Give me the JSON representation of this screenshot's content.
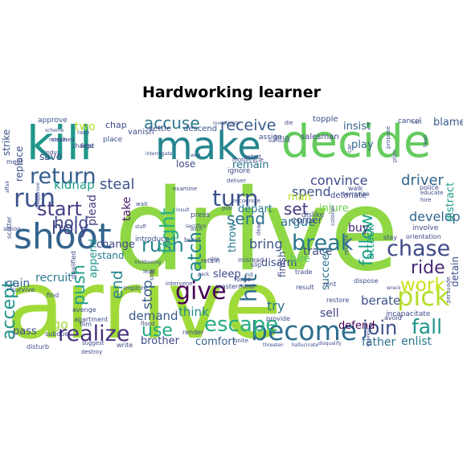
{
  "title": "Hardworking learner",
  "words": [
    {
      "text": "arrive",
      "color": "#a0da39"
    },
    {
      "text": "drive",
      "color": "#8fd744"
    },
    {
      "text": "decide",
      "color": "#65cb5e"
    },
    {
      "text": "make",
      "color": "#25858e"
    },
    {
      "text": "kill",
      "color": "#1f988b"
    },
    {
      "text": "shoot",
      "color": "#33638d"
    },
    {
      "text": "become",
      "color": "#2e6e8e"
    },
    {
      "text": "return",
      "color": "#365d8d"
    },
    {
      "text": "give",
      "color": "#440154"
    },
    {
      "text": "run",
      "color": "#3b528b"
    },
    {
      "text": "chase",
      "color": "#3e4a89"
    },
    {
      "text": "pick",
      "color": "#b5de2b"
    },
    {
      "text": "work",
      "color": "#cae11f"
    },
    {
      "text": "escape",
      "color": "#27ad81"
    },
    {
      "text": "realize",
      "color": "#46327e"
    },
    {
      "text": "join",
      "color": "#3b528b"
    },
    {
      "text": "fall",
      "color": "#1f948c"
    },
    {
      "text": "break",
      "color": "#2a768e"
    },
    {
      "text": "turn",
      "color": "#3b528b"
    },
    {
      "text": "start",
      "color": "#433e85"
    },
    {
      "text": "use",
      "color": "#23a983"
    },
    {
      "text": "rush",
      "color": "#25848e"
    },
    {
      "text": "hit",
      "color": "#2e6e8e"
    },
    {
      "text": "fight",
      "color": "#29af7f"
    },
    {
      "text": "catch",
      "color": "#24868e"
    },
    {
      "text": "holy",
      "color": "#3f4889"
    },
    {
      "text": "ride",
      "color": "#482878"
    },
    {
      "text": "accuse",
      "color": "#2a768e"
    },
    {
      "text": "receive",
      "color": "#38598c"
    },
    {
      "text": "send",
      "color": "#2c728e"
    },
    {
      "text": "set",
      "color": "#443983"
    },
    {
      "text": "follow",
      "color": "#1fa088"
    },
    {
      "text": "push",
      "color": "#1f9e89"
    },
    {
      "text": "end",
      "color": "#25858e"
    },
    {
      "text": "stop",
      "color": "#365d8d"
    },
    {
      "text": "accept",
      "color": "#20928c"
    },
    {
      "text": "driver",
      "color": "#31668e"
    },
    {
      "text": "develop",
      "color": "#31668e"
    },
    {
      "text": "convince",
      "color": "#3e4c8a"
    },
    {
      "text": "steal",
      "color": "#3b528b"
    },
    {
      "text": "hold",
      "color": "#3f4889"
    },
    {
      "text": "spend",
      "color": "#3b528b"
    },
    {
      "text": "argue",
      "color": "#2c728e"
    },
    {
      "text": "bring",
      "color": "#3b528b"
    },
    {
      "text": "buy",
      "color": "#482173"
    },
    {
      "text": "trace",
      "color": "#3e4a89"
    },
    {
      "text": "try",
      "color": "#2a788e"
    },
    {
      "text": "sell",
      "color": "#404688"
    },
    {
      "text": "demand",
      "color": "#38598c"
    },
    {
      "text": "berate",
      "color": "#3b528b"
    },
    {
      "text": "enlist",
      "color": "#2a768e"
    },
    {
      "text": "father",
      "color": "#2c728e"
    },
    {
      "text": "think",
      "color": "#23898e"
    },
    {
      "text": "comfort",
      "color": "#34618d"
    },
    {
      "text": "brother",
      "color": "#3f4889"
    },
    {
      "text": "kidnap",
      "color": "#1f9a8a"
    },
    {
      "text": "depart",
      "color": "#2a768e"
    },
    {
      "text": "take",
      "color": "#481a6c"
    },
    {
      "text": "recruit",
      "color": "#2a788e"
    },
    {
      "text": "gain",
      "color": "#32658e"
    },
    {
      "text": "pass",
      "color": "#3e4c8a"
    },
    {
      "text": "go",
      "color": "#a2da37"
    },
    {
      "text": "remain",
      "color": "#2c728e"
    },
    {
      "text": "lose",
      "color": "#3e4a89"
    },
    {
      "text": "disarm",
      "color": "#3e4c8a"
    },
    {
      "text": "hire",
      "color": "#5ec962"
    },
    {
      "text": "injure",
      "color": "#70cf57"
    },
    {
      "text": "play",
      "color": "#32658e"
    },
    {
      "text": "insist",
      "color": "#34618d"
    },
    {
      "text": "blame",
      "color": "#365d8d"
    },
    {
      "text": "two",
      "color": "#b8de29"
    },
    {
      "text": "save",
      "color": "#3e4c8a"
    },
    {
      "text": "plead",
      "color": "#433e85"
    },
    {
      "text": "change",
      "color": "#3f4889"
    },
    {
      "text": "stand",
      "color": "#2a788e"
    },
    {
      "text": "sleep",
      "color": "#3e4a89"
    },
    {
      "text": "finish",
      "color": "#3e4c8a"
    },
    {
      "text": "succeed",
      "color": "#2c728e"
    },
    {
      "text": "defend",
      "color": "#440154"
    },
    {
      "text": "attack",
      "color": "#1f9e89"
    },
    {
      "text": "distract",
      "color": "#1f9e89"
    },
    {
      "text": "replace",
      "color": "#3b528b"
    },
    {
      "text": "strike",
      "color": "#3b528b"
    },
    {
      "text": "corner",
      "color": "#3e4c8a"
    },
    {
      "text": "append",
      "color": "#1f968b"
    },
    {
      "text": "detain",
      "color": "#3e4c8a"
    },
    {
      "text": "throw",
      "color": "#2a788e"
    },
    {
      "text": "chap",
      "color": "#3e4a89"
    },
    {
      "text": "settle",
      "color": "#3e4a89"
    },
    {
      "text": "descend",
      "color": "#3b528b"
    },
    {
      "text": "man",
      "color": "#bddf26"
    },
    {
      "text": "salesman",
      "color": "#404688"
    },
    {
      "text": "detonate",
      "color": "#3e4a89"
    },
    {
      "text": "topple",
      "color": "#3b528b"
    },
    {
      "text": "cancel",
      "color": "#3e4a89"
    },
    {
      "text": "approve",
      "color": "#3b528b"
    },
    {
      "text": "vanish",
      "color": "#3e4a89"
    },
    {
      "text": "place",
      "color": "#3b528b"
    },
    {
      "text": "assign",
      "color": "#3e4a89"
    },
    {
      "text": "ignore",
      "color": "#3e4a89"
    },
    {
      "text": "dislike",
      "color": "#3e4a89"
    },
    {
      "text": "introduce",
      "color": "#3e4a89"
    },
    {
      "text": "burst",
      "color": "#3e4a89"
    },
    {
      "text": "press",
      "color": "#3e4a89"
    },
    {
      "text": "police",
      "color": "#3e4a89"
    },
    {
      "text": "educate",
      "color": "#3e4a89"
    },
    {
      "text": "involve",
      "color": "#3e4a89"
    },
    {
      "text": "orientation",
      "color": "#3e4a89"
    },
    {
      "text": "stay",
      "color": "#3e4a89"
    },
    {
      "text": "dispose",
      "color": "#3e4a89"
    },
    {
      "text": "incapacitate",
      "color": "#3e4a89"
    },
    {
      "text": "persuade",
      "color": "#3e4a89"
    },
    {
      "text": "avoid",
      "color": "#3e4a89"
    },
    {
      "text": "retain",
      "color": "#3e4a89"
    },
    {
      "text": "misread",
      "color": "#3e4a89"
    },
    {
      "text": "mastermind",
      "color": "#3e4a89"
    },
    {
      "text": "forge",
      "color": "#3e4a89"
    },
    {
      "text": "rent",
      "color": "#3e4a89"
    },
    {
      "text": "restore",
      "color": "#3e4a89"
    },
    {
      "text": "trade",
      "color": "#3e4a89"
    },
    {
      "text": "result",
      "color": "#3e4a89"
    },
    {
      "text": "slip",
      "color": "#3e4a89"
    },
    {
      "text": "provide",
      "color": "#3e4a89"
    },
    {
      "text": "unite",
      "color": "#3e4a89"
    },
    {
      "text": "render",
      "color": "#3e4a89"
    },
    {
      "text": "intervene",
      "color": "#3e4a89"
    },
    {
      "text": "implore",
      "color": "#3e4a89"
    },
    {
      "text": "flood",
      "color": "#3e4a89"
    },
    {
      "text": "write",
      "color": "#3e4a89"
    },
    {
      "text": "apartment",
      "color": "#3e4a89"
    },
    {
      "text": "avenge",
      "color": "#3e4a89"
    },
    {
      "text": "film",
      "color": "#3e4a89"
    },
    {
      "text": "find",
      "color": "#3e4a89"
    },
    {
      "text": "qualified",
      "color": "#3e4a89"
    },
    {
      "text": "subdue",
      "color": "#3e4a89"
    },
    {
      "text": "disturb",
      "color": "#3e4a89"
    },
    {
      "text": "survive",
      "color": "#3e4a89"
    },
    {
      "text": "scatter",
      "color": "#3e4a89"
    },
    {
      "text": "action",
      "color": "#3e4a89"
    },
    {
      "text": "hindus",
      "color": "#3e4a89"
    },
    {
      "text": "meet",
      "color": "#3e4a89"
    },
    {
      "text": "strained",
      "color": "#3e4a89"
    },
    {
      "text": "foist",
      "color": "#3e4a89"
    },
    {
      "text": "match",
      "color": "#3e4a89"
    },
    {
      "text": "race",
      "color": "#3e4a89"
    },
    {
      "text": "charge",
      "color": "#3e4a89"
    },
    {
      "text": "wait",
      "color": "#3e4a89"
    },
    {
      "text": "pull",
      "color": "#3e4a89"
    },
    {
      "text": "deliver",
      "color": "#3e4a89"
    },
    {
      "text": "terrorize",
      "color": "#3e4a89"
    },
    {
      "text": "walk",
      "color": "#3e4a89"
    },
    {
      "text": "car",
      "color": "#3e4a89"
    },
    {
      "text": "colonel",
      "color": "#3e4a89"
    },
    {
      "text": "hire",
      "color": "#3e4a89"
    },
    {
      "text": "plan",
      "color": "#3e4a89"
    },
    {
      "text": "propose",
      "color": "#3e4a89"
    },
    {
      "text": "reunite",
      "color": "#3e4a89"
    },
    {
      "text": "lead",
      "color": "#3e4a89"
    },
    {
      "text": "side",
      "color": "#3e4a89"
    },
    {
      "text": "recognize",
      "color": "#3e4a89"
    },
    {
      "text": "focus",
      "color": "#3e4a89"
    },
    {
      "text": "die",
      "color": "#3e4a89"
    },
    {
      "text": "suggest",
      "color": "#3e4a89"
    },
    {
      "text": "destroy",
      "color": "#3e4a89"
    },
    {
      "text": "threaten",
      "color": "#3e4a89"
    },
    {
      "text": "hallucinate",
      "color": "#3e4a89"
    },
    {
      "text": "disqualify",
      "color": "#3e4a89"
    },
    {
      "text": "impress",
      "color": "#3e4a89"
    },
    {
      "text": "head",
      "color": "#3e4a89"
    },
    {
      "text": "disapprove",
      "color": "#3e4a89"
    },
    {
      "text": "affair",
      "color": "#3e4a89"
    },
    {
      "text": "interrogate",
      "color": "#3e4a89"
    },
    {
      "text": "examine",
      "color": "#3e4a89"
    },
    {
      "text": "extort",
      "color": "#3e4a89"
    },
    {
      "text": "motorcycle",
      "color": "#3e4a89"
    },
    {
      "text": "surround",
      "color": "#3e4a89"
    },
    {
      "text": "scheme",
      "color": "#3e4a89"
    },
    {
      "text": "dead",
      "color": "#3e4a89"
    },
    {
      "text": "rid",
      "color": "#3e4a89"
    },
    {
      "text": "hurt",
      "color": "#3e4a89"
    },
    {
      "text": "pack",
      "color": "#3e4a89"
    },
    {
      "text": "skip",
      "color": "#3e4a89"
    },
    {
      "text": "wed",
      "color": "#3e4a89"
    },
    {
      "text": "insult",
      "color": "#3e4a89"
    },
    {
      "text": "investigate",
      "color": "#3e4a89"
    },
    {
      "text": "kickboxing",
      "color": "#3e4a89"
    },
    {
      "text": "sacrifice",
      "color": "#3e4a89"
    },
    {
      "text": "ditch",
      "color": "#3e4a89"
    },
    {
      "text": "stuff",
      "color": "#3e4a89"
    },
    {
      "text": "wreck",
      "color": "#3e4a89"
    },
    {
      "text": "join",
      "color": "#3e4a89"
    }
  ]
}
